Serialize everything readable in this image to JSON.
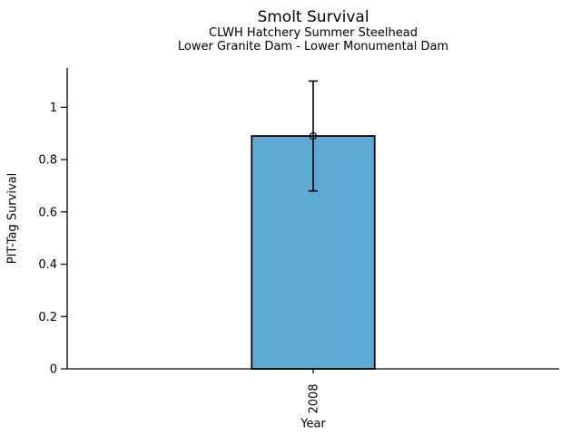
{
  "chart_data": {
    "type": "bar",
    "title": "Smolt Survival",
    "subtitles": [
      "CLWH Hatchery Summer Steelhead",
      "Lower Granite Dam - Lower Monumental Dam"
    ],
    "xlabel": "Year",
    "ylabel": "PIT-Tag Survival",
    "categories": [
      "2008"
    ],
    "values": [
      0.89
    ],
    "error_low": [
      0.68
    ],
    "error_high": [
      1.1
    ],
    "marker": "open-circle",
    "yticks": [
      0,
      0.2,
      0.4,
      0.6,
      0.8,
      1
    ],
    "ytick_labels": [
      "0",
      "0.2",
      "0.4",
      "0.6",
      "0.8",
      "1"
    ],
    "ylim": [
      0,
      1.15
    ],
    "grid": false,
    "legend": "none",
    "bar_color": "#5CA9D4",
    "edge_color": "#000000",
    "axis_color": "#000000",
    "background_color": "#FFFFFF"
  }
}
